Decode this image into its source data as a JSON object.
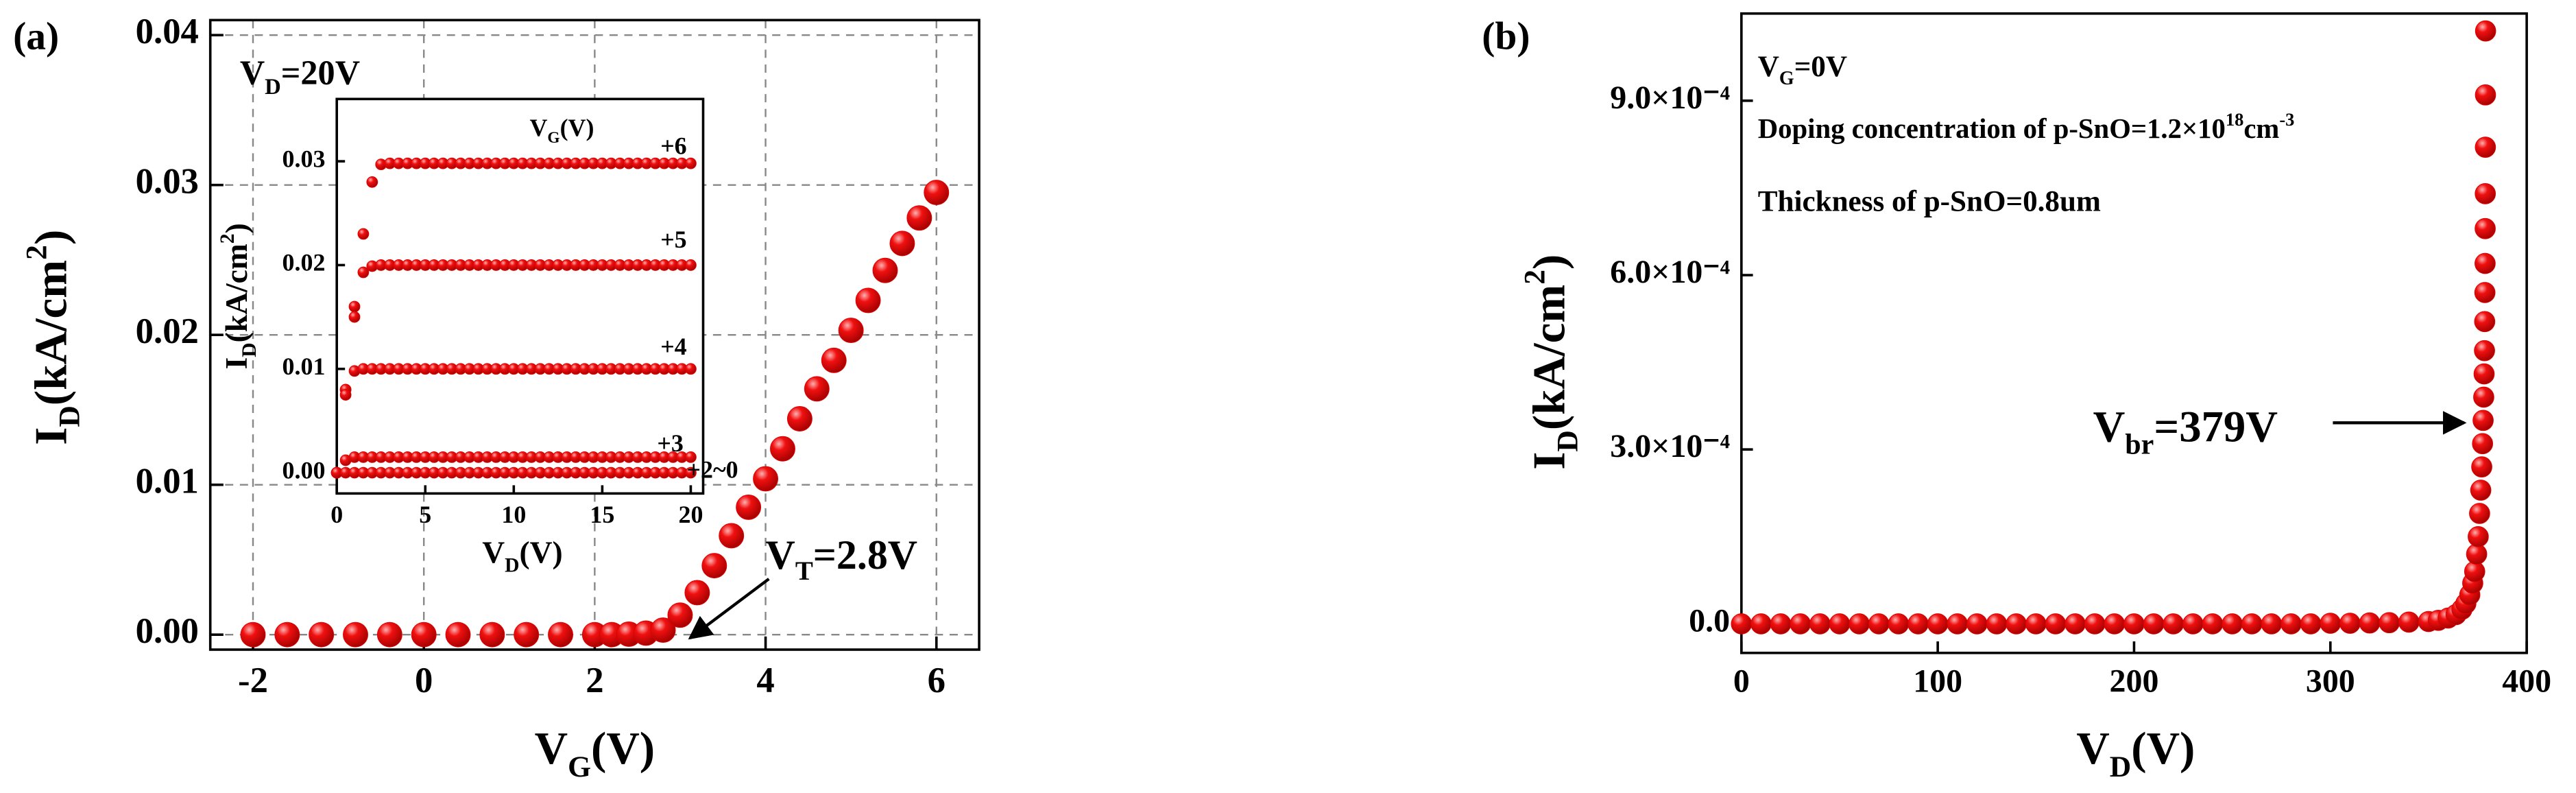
{
  "chart_data": [
    {
      "type": "scatter",
      "panel_label": "(a)",
      "color": "#e00000",
      "grid": true,
      "xlabel": [
        {
          "text": "V"
        },
        {
          "text": "G",
          "shift": "sub"
        },
        {
          "text": "(V)"
        }
      ],
      "ylabel": [
        {
          "text": "I"
        },
        {
          "text": "D",
          "shift": "sub"
        },
        {
          "text": "(kA/cm"
        },
        {
          "text": "2",
          "shift": "super"
        },
        {
          "text": ")"
        }
      ],
      "annotations": [
        [
          {
            "text": "V"
          },
          {
            "text": "D",
            "shift": "sub"
          },
          {
            "text": "=20V"
          }
        ],
        [
          {
            "text": "V"
          },
          {
            "text": "T",
            "shift": "sub"
          },
          {
            "text": "=2.8V"
          }
        ]
      ],
      "xlim": [
        -2.5,
        6.5
      ],
      "xticks": [
        -2,
        0,
        2,
        4,
        6
      ],
      "ylim": [
        -0.001,
        0.041
      ],
      "yticks": [
        {
          "value": 0,
          "label": "0.00"
        },
        0.01,
        0.02,
        0.03,
        0.04
      ],
      "x": [
        -2,
        -1.6,
        -1.2,
        -0.8,
        -0.4,
        0,
        0.4,
        0.8,
        1.2,
        1.6,
        2.0,
        2.2,
        2.4,
        2.6,
        2.8,
        3.0,
        3.2,
        3.4,
        3.6,
        3.8,
        4.0,
        4.2,
        4.4,
        4.6,
        4.8,
        5.0,
        5.2,
        5.4,
        5.6,
        5.8,
        6.0
      ],
      "values": [
        0,
        0,
        0,
        0,
        0,
        0,
        0,
        0,
        0,
        0,
        0,
        0,
        3e-05,
        0.0001,
        0.0003,
        0.0013,
        0.0028,
        0.0046,
        0.0066,
        0.0085,
        0.0104,
        0.0124,
        0.0144,
        0.0164,
        0.0183,
        0.0203,
        0.0223,
        0.0243,
        0.0261,
        0.0278,
        0.0295
      ]
    },
    {
      "type": "scatter",
      "grid": false,
      "xlabel": [
        {
          "text": "V"
        },
        {
          "text": "D",
          "shift": "sub"
        },
        {
          "text": "(V)"
        }
      ],
      "ylabel": [
        {
          "text": "I"
        },
        {
          "text": "D",
          "shift": "sub"
        },
        {
          "text": "(kA/cm"
        },
        {
          "text": "2",
          "shift": "super"
        },
        {
          "text": ")"
        }
      ],
      "legend_title": [
        {
          "text": "V"
        },
        {
          "text": "G",
          "shift": "sub"
        },
        {
          "text": "(V)"
        }
      ],
      "xlim": [
        0,
        20.7
      ],
      "xticks": [
        0,
        5,
        10,
        15,
        20
      ],
      "ylim": [
        -0.002,
        0.036
      ],
      "yticks": [
        {
          "value": 0,
          "label": "0.00"
        },
        0.01,
        0.02,
        0.03
      ],
      "x": [
        0,
        0.5,
        1,
        1.5,
        2,
        2.5,
        3,
        3.5,
        4,
        4.5,
        5,
        5.5,
        6,
        6.5,
        7,
        7.5,
        8,
        8.5,
        9,
        9.5,
        10,
        10.5,
        11,
        11.5,
        12,
        12.5,
        13,
        13.5,
        14,
        14.5,
        15,
        15.5,
        16,
        16.5,
        17,
        17.5,
        18,
        18.5,
        19,
        19.5,
        20
      ],
      "series": [
        {
          "name": "+6",
          "color": "#e00000",
          "values": [
            0,
            0.008,
            0.016,
            0.023,
            0.028,
            0.0297,
            0.0298,
            0.0298,
            0.0298,
            0.0298,
            0.0298,
            0.0298,
            0.0298,
            0.0298,
            0.0298,
            0.0298,
            0.0298,
            0.0298,
            0.0298,
            0.0298,
            0.0298,
            0.0298,
            0.0298,
            0.0298,
            0.0298,
            0.0298,
            0.0298,
            0.0298,
            0.0298,
            0.0298,
            0.0298,
            0.0298,
            0.0298,
            0.0298,
            0.0298,
            0.0298,
            0.0298,
            0.0298,
            0.0298,
            0.0298,
            0.0298
          ]
        },
        {
          "name": "+5",
          "color": "#e00000",
          "values": [
            0,
            0.008,
            0.015,
            0.0193,
            0.0199,
            0.02,
            0.02,
            0.02,
            0.02,
            0.02,
            0.02,
            0.02,
            0.02,
            0.02,
            0.02,
            0.02,
            0.02,
            0.02,
            0.02,
            0.02,
            0.02,
            0.02,
            0.02,
            0.02,
            0.02,
            0.02,
            0.02,
            0.02,
            0.02,
            0.02,
            0.02,
            0.02,
            0.02,
            0.02,
            0.02,
            0.02,
            0.02,
            0.02,
            0.02,
            0.02,
            0.02
          ]
        },
        {
          "name": "+4",
          "color": "#e00000",
          "values": [
            0,
            0.0075,
            0.0098,
            0.01,
            0.01,
            0.01,
            0.01,
            0.01,
            0.01,
            0.01,
            0.01,
            0.01,
            0.01,
            0.01,
            0.01,
            0.01,
            0.01,
            0.01,
            0.01,
            0.01,
            0.01,
            0.01,
            0.01,
            0.01,
            0.01,
            0.01,
            0.01,
            0.01,
            0.01,
            0.01,
            0.01,
            0.01,
            0.01,
            0.01,
            0.01,
            0.01,
            0.01,
            0.01,
            0.01,
            0.01,
            0.01
          ]
        },
        {
          "name": "+3",
          "color": "#e00000",
          "values": [
            0,
            0.0012,
            0.0015,
            0.0015,
            0.0015,
            0.0015,
            0.0015,
            0.0015,
            0.0015,
            0.0015,
            0.0015,
            0.0015,
            0.0015,
            0.0015,
            0.0015,
            0.0015,
            0.0015,
            0.0015,
            0.0015,
            0.0015,
            0.0015,
            0.0015,
            0.0015,
            0.0015,
            0.0015,
            0.0015,
            0.0015,
            0.0015,
            0.0015,
            0.0015,
            0.0015,
            0.0015,
            0.0015,
            0.0015,
            0.0015,
            0.0015,
            0.0015,
            0.0015,
            0.0015,
            0.0015,
            0.0015
          ]
        },
        {
          "name": "+2~0",
          "color": "#e00000",
          "values": [
            0,
            0,
            0,
            0,
            0,
            0,
            0,
            0,
            0,
            0,
            0,
            0,
            0,
            0,
            0,
            0,
            0,
            0,
            0,
            0,
            0,
            0,
            0,
            0,
            0,
            0,
            0,
            0,
            0,
            0,
            0,
            0,
            0,
            0,
            0,
            0,
            0,
            0,
            0,
            0,
            0
          ]
        }
      ]
    },
    {
      "type": "scatter",
      "panel_label": "(b)",
      "color": "#e00000",
      "grid": false,
      "xlabel": [
        {
          "text": "V"
        },
        {
          "text": "D",
          "shift": "sub"
        },
        {
          "text": "(V)"
        }
      ],
      "ylabel": [
        {
          "text": "I"
        },
        {
          "text": "D",
          "shift": "sub"
        },
        {
          "text": "(kA/cm"
        },
        {
          "text": "2",
          "shift": "super"
        },
        {
          "text": ")"
        }
      ],
      "annotations": [
        [
          {
            "text": "V"
          },
          {
            "text": "G",
            "shift": "sub"
          },
          {
            "text": "=0V"
          }
        ],
        [
          {
            "text": "Doping concentration of p-SnO=1.2×10"
          },
          {
            "text": "18",
            "shift": "super"
          },
          {
            "text": "cm"
          },
          {
            "text": "-3",
            "shift": "super"
          }
        ],
        [
          {
            "text": "Thickness of p-SnO=0.8um"
          }
        ],
        [
          {
            "text": "V"
          },
          {
            "text": "br",
            "shift": "sub"
          },
          {
            "text": "=379V"
          }
        ]
      ],
      "xlim": [
        0,
        400
      ],
      "xticks": [
        0,
        100,
        200,
        300,
        400
      ],
      "ylim": [
        -5e-05,
        0.00105
      ],
      "yticks": [
        {
          "value": 0,
          "label": "0.0"
        },
        {
          "value": 0.0003,
          "label": "3.0×10⁻⁴"
        },
        {
          "value": 0.0006,
          "label": "6.0×10⁻⁴"
        },
        {
          "value": 0.0009,
          "label": "9.0×10⁻⁴"
        }
      ],
      "x": [
        0,
        10,
        20,
        30,
        40,
        50,
        60,
        70,
        80,
        90,
        100,
        110,
        120,
        130,
        140,
        150,
        160,
        170,
        180,
        190,
        200,
        210,
        220,
        230,
        240,
        250,
        260,
        270,
        280,
        290,
        300,
        310,
        320,
        330,
        340,
        350,
        355,
        360,
        364,
        367,
        369,
        371,
        372.5,
        373.5,
        374.5,
        375.3,
        376,
        376.6,
        377.1,
        377.5,
        377.8,
        378.1,
        378.3,
        378.5,
        378.6,
        378.7,
        378.8,
        378.85,
        378.9,
        378.95,
        379,
        379.05
      ],
      "values": [
        0,
        0,
        0,
        0,
        0,
        0,
        0,
        0,
        0,
        0,
        0,
        0,
        0,
        0,
        0,
        0,
        0,
        0,
        0,
        0,
        0,
        0,
        0,
        0,
        0,
        0,
        0,
        0,
        0,
        0,
        1e-06,
        1e-06,
        1.5e-06,
        2e-06,
        3e-06,
        4e-06,
        6e-06,
        1e-05,
        1.6e-05,
        2.5e-05,
        3.5e-05,
        5e-05,
        7e-05,
        9e-05,
        0.00012,
        0.00015,
        0.00019,
        0.00023,
        0.00027,
        0.00031,
        0.00035,
        0.00039,
        0.00043,
        0.00047,
        0.00052,
        0.00057,
        0.00062,
        0.00068,
        0.00074,
        0.00082,
        0.00091,
        0.00102
      ]
    }
  ]
}
